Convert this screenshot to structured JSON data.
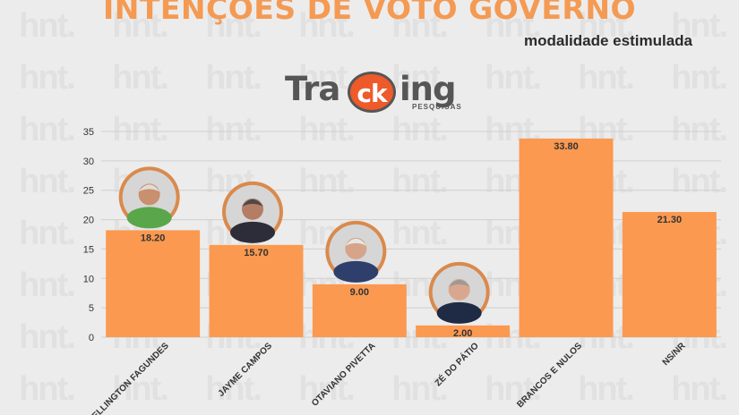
{
  "header": {
    "title": "INTENÇÕES DE VOTO GOVERNO",
    "subtitle": "modalidade estimulada"
  },
  "logo": {
    "part1": "Tra",
    "ck": "ck",
    "part2": "ing",
    "sub": "PESQUISAS"
  },
  "watermark": {
    "text": "hnt."
  },
  "chart_data": {
    "type": "bar",
    "categories": [
      "WELLINGTON FAGUNDES",
      "JAYME CAMPOS",
      "OTAVIANO PIVETTA",
      "ZÉ DO PÁTIO",
      "BRANCOS E NULOS",
      "NS/NR"
    ],
    "values": [
      18.2,
      15.7,
      9.0,
      2.0,
      33.8,
      21.3
    ],
    "value_labels": [
      "18.20",
      "15.70",
      "9.00",
      "2.00",
      "33.80",
      "21.30"
    ],
    "ylim": [
      0,
      35
    ],
    "yticks": [
      0,
      5,
      10,
      15,
      20,
      25,
      30,
      35
    ],
    "grid": true,
    "bar_color": "#fb9950",
    "avatars": [
      true,
      true,
      true,
      true,
      false,
      false
    ]
  }
}
